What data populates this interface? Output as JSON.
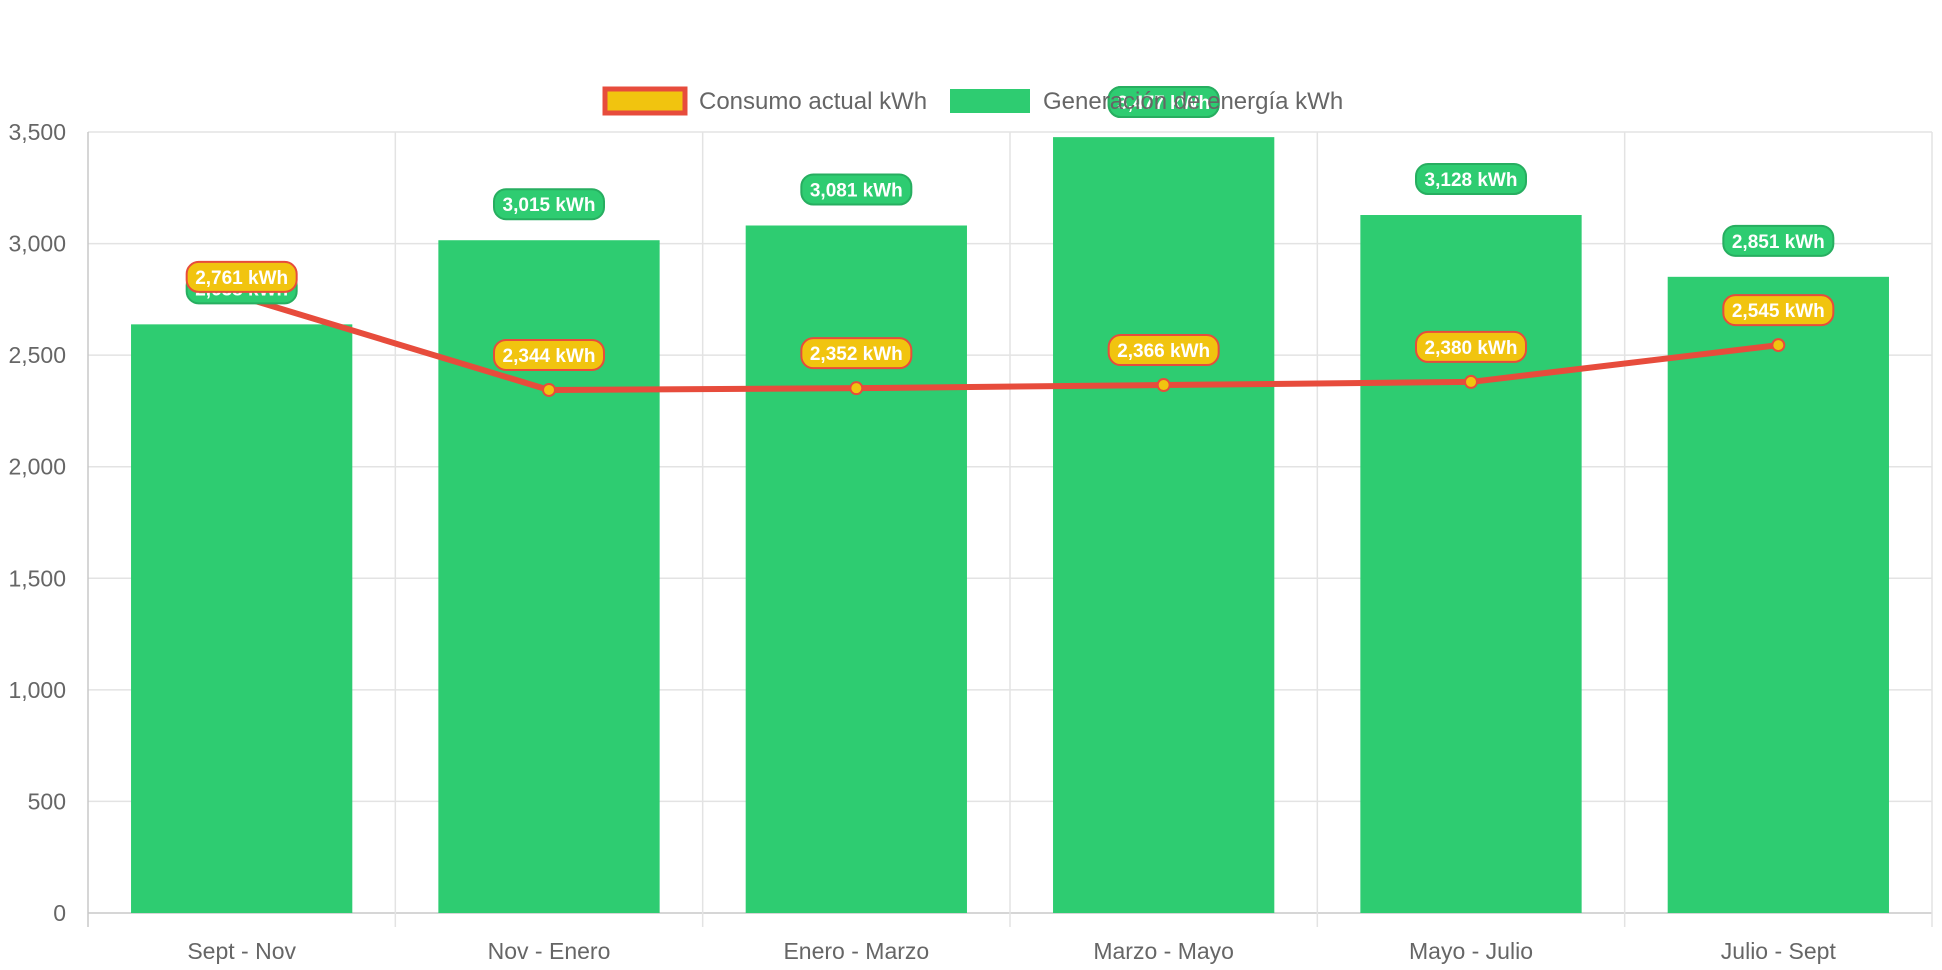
{
  "chart_data": {
    "type": "bar",
    "categories": [
      "Sept - Nov",
      "Nov - Enero",
      "Enero - Marzo",
      "Marzo - Mayo",
      "Mayo - Julio",
      "Julio - Sept"
    ],
    "series": [
      {
        "name": "Consumo actual kWh",
        "render": "line",
        "values": [
          2761,
          2344,
          2352,
          2366,
          2380,
          2545
        ],
        "labels": [
          "2,761 kWh",
          "2,344 kWh",
          "2,352 kWh",
          "2,366 kWh",
          "2,380 kWh",
          "2,545 kWh"
        ],
        "color": "#e74c3c",
        "fill": "#f1c40f"
      },
      {
        "name": "Generación de energía kWh",
        "render": "bar",
        "values": [
          2638,
          3015,
          3081,
          3477,
          3128,
          2851
        ],
        "labels": [
          "2,638 kWh",
          "3,015 kWh",
          "3,081 kWh",
          "3,477 kWh",
          "3,128 kWh",
          "2,851 kWh"
        ],
        "color": "#2ecc71",
        "border": "#27ae60"
      }
    ],
    "yticks": [
      "0",
      "500",
      "1,000",
      "1,500",
      "2,000",
      "2,500",
      "3,000",
      "3,500"
    ],
    "ylim": [
      0,
      3500
    ],
    "grid": true,
    "legend_position": "top"
  }
}
